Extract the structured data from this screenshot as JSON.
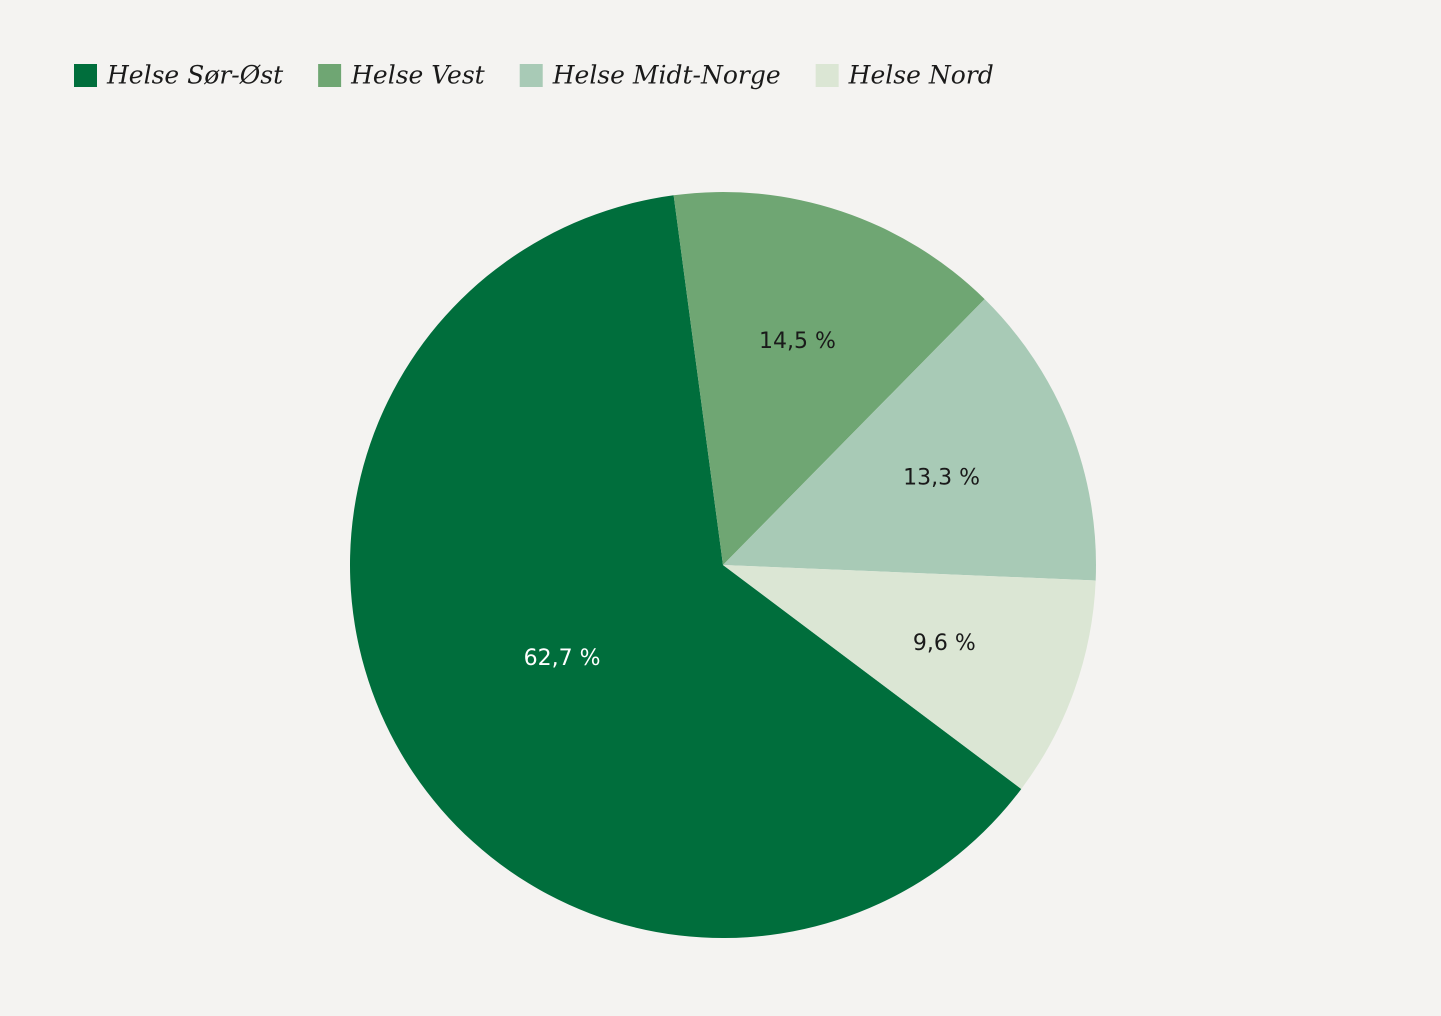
{
  "chart_data": {
    "type": "pie",
    "categories": [
      "Helse Sør-Øst",
      "Helse Vest",
      "Helse Midt-Norge",
      "Helse Nord"
    ],
    "values": [
      62.7,
      14.5,
      13.3,
      9.6
    ],
    "value_labels": [
      "62,7 %",
      "14,5 %",
      "13,3 %",
      "9,6 %"
    ],
    "colors": [
      "#006e3c",
      "#6fa673",
      "#a8cab6",
      "#dbe6d4"
    ],
    "legend": "top-left"
  }
}
